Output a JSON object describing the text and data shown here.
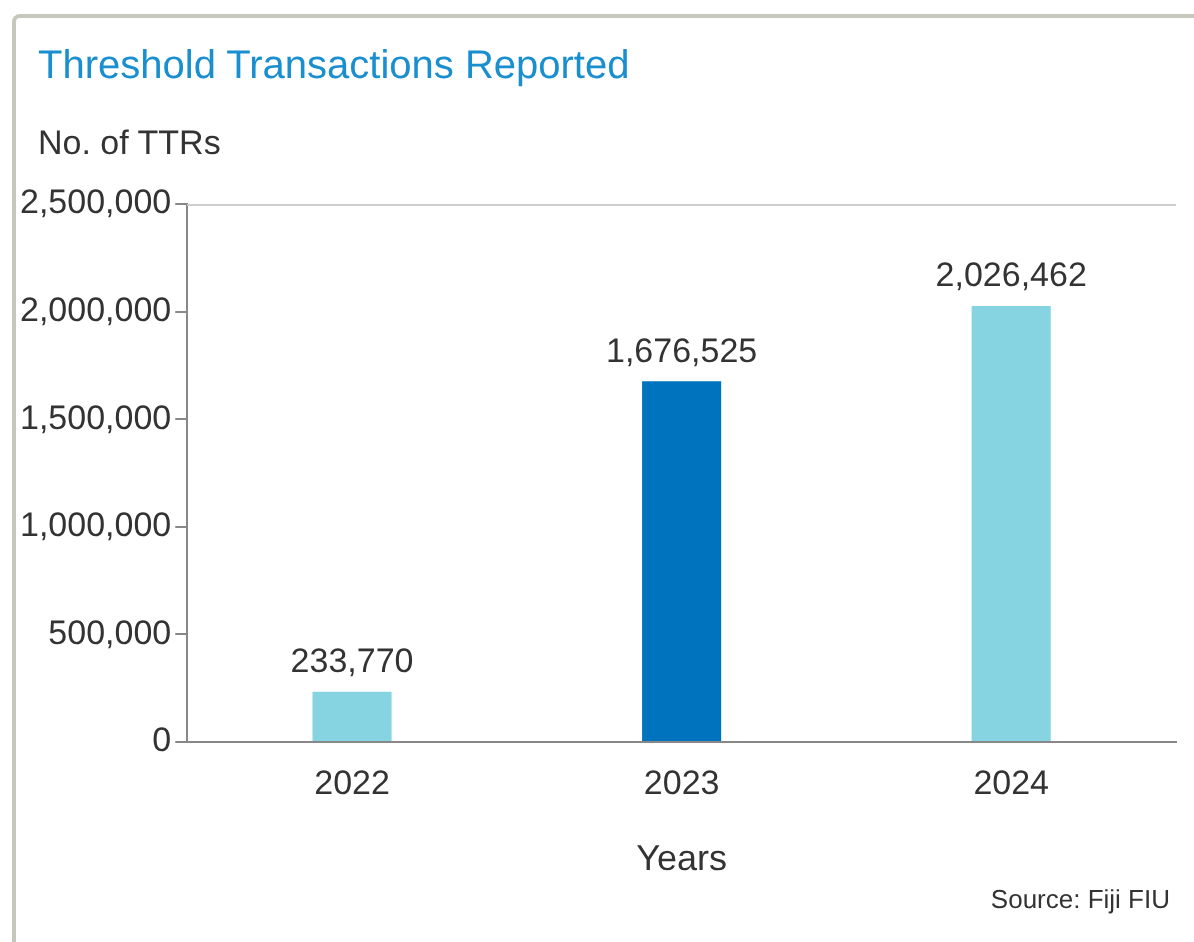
{
  "chart_data": {
    "type": "bar",
    "title": "Threshold Transactions Reported",
    "ylabel": "No. of TTRs",
    "xlabel": "Years",
    "categories": [
      "2022",
      "2023",
      "2024"
    ],
    "values": [
      233770,
      1676525,
      2026462
    ],
    "value_labels": [
      "233,770",
      "1,676,525",
      "2,026,462"
    ],
    "colors": [
      "#86d4e2",
      "#0073bf",
      "#86d4e2"
    ],
    "ylim": [
      0,
      2500000
    ],
    "yticks": [
      0,
      {
        "value": 500000,
        "label": "500,000"
      },
      {
        "value": 1000000,
        "label": "1,000,000"
      },
      {
        "value": 1500000,
        "label": "1,500,000"
      },
      {
        "value": 2000000,
        "label": "2,000,000"
      },
      {
        "value": 2500000,
        "label": "2,500,000"
      }
    ],
    "grid": false,
    "legend": false,
    "annotations": [
      "Source: Fiji FIU"
    ]
  }
}
